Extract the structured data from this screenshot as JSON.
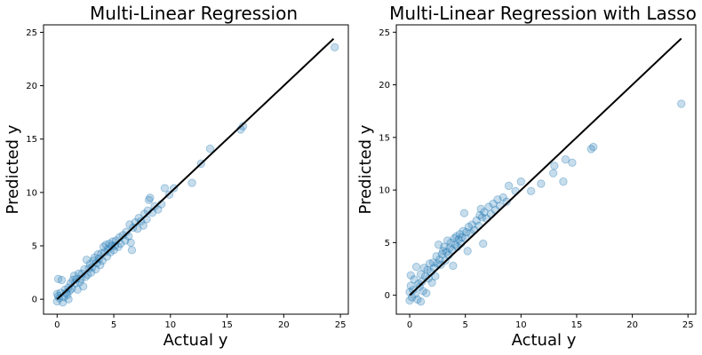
{
  "chart_data": [
    {
      "type": "scatter",
      "title": "Multi-Linear Regression",
      "xlabel": "Actual y",
      "ylabel": "Predicted y",
      "xlim": [
        -1.2,
        25.7
      ],
      "ylim": [
        -1.4,
        25.7
      ],
      "xticks": [
        0,
        5,
        10,
        15,
        20,
        25
      ],
      "yticks": [
        0,
        5,
        10,
        15,
        20,
        25
      ],
      "point_color": "#1f77b4",
      "line_color": "#000000",
      "reference_line": {
        "x": [
          0,
          24.4
        ],
        "y": [
          0,
          24.4
        ]
      },
      "points": [
        [
          0.0,
          -0.2
        ],
        [
          0.0,
          0.5
        ],
        [
          0.1,
          0.3
        ],
        [
          0.1,
          1.9
        ],
        [
          0.2,
          0.1
        ],
        [
          0.3,
          0.6
        ],
        [
          0.4,
          1.8
        ],
        [
          0.5,
          -0.3
        ],
        [
          0.6,
          0.2
        ],
        [
          0.7,
          0.9
        ],
        [
          0.8,
          0.6
        ],
        [
          0.9,
          0.4
        ],
        [
          1.0,
          0.0
        ],
        [
          1.0,
          1.1
        ],
        [
          1.1,
          0.8
        ],
        [
          1.2,
          1.5
        ],
        [
          1.3,
          1.0
        ],
        [
          1.4,
          1.8
        ],
        [
          1.5,
          2.2
        ],
        [
          1.6,
          1.5
        ],
        [
          1.7,
          1.9
        ],
        [
          1.8,
          0.9
        ],
        [
          1.9,
          2.4
        ],
        [
          2.0,
          1.6
        ],
        [
          2.1,
          1.9
        ],
        [
          2.2,
          2.4
        ],
        [
          2.3,
          1.2
        ],
        [
          2.4,
          2.8
        ],
        [
          2.5,
          2.1
        ],
        [
          2.6,
          3.7
        ],
        [
          2.7,
          2.3
        ],
        [
          2.8,
          2.9
        ],
        [
          2.9,
          3.3
        ],
        [
          3.0,
          2.5
        ],
        [
          3.1,
          3.0
        ],
        [
          3.2,
          3.6
        ],
        [
          3.3,
          3.9
        ],
        [
          3.4,
          2.8
        ],
        [
          3.5,
          3.4
        ],
        [
          3.6,
          4.2
        ],
        [
          3.7,
          3.8
        ],
        [
          3.8,
          3.2
        ],
        [
          3.9,
          4.3
        ],
        [
          4.0,
          3.6
        ],
        [
          4.1,
          4.9
        ],
        [
          4.2,
          4.4
        ],
        [
          4.3,
          5.1
        ],
        [
          4.4,
          4.0
        ],
        [
          4.5,
          4.7
        ],
        [
          4.6,
          5.2
        ],
        [
          4.7,
          4.4
        ],
        [
          4.8,
          5.0
        ],
        [
          4.9,
          5.4
        ],
        [
          5.0,
          4.6
        ],
        [
          5.1,
          5.0
        ],
        [
          5.2,
          5.5
        ],
        [
          5.4,
          4.9
        ],
        [
          5.5,
          5.8
        ],
        [
          5.6,
          5.2
        ],
        [
          5.8,
          6.0
        ],
        [
          6.0,
          5.5
        ],
        [
          6.1,
          6.3
        ],
        [
          6.3,
          5.9
        ],
        [
          6.4,
          7.0
        ],
        [
          6.5,
          5.3
        ],
        [
          6.6,
          4.6
        ],
        [
          6.7,
          6.7
        ],
        [
          6.9,
          7.2
        ],
        [
          7.1,
          6.6
        ],
        [
          7.2,
          7.6
        ],
        [
          7.4,
          7.3
        ],
        [
          7.6,
          6.9
        ],
        [
          7.7,
          8.0
        ],
        [
          7.9,
          7.5
        ],
        [
          8.0,
          8.3
        ],
        [
          8.1,
          9.3
        ],
        [
          8.2,
          9.5
        ],
        [
          8.4,
          8.1
        ],
        [
          8.6,
          8.7
        ],
        [
          8.9,
          8.4
        ],
        [
          9.2,
          8.9
        ],
        [
          9.5,
          10.4
        ],
        [
          9.9,
          9.8
        ],
        [
          10.3,
          10.4
        ],
        [
          11.9,
          10.9
        ],
        [
          12.7,
          12.7
        ],
        [
          13.5,
          14.1
        ],
        [
          16.2,
          15.9
        ],
        [
          16.4,
          16.2
        ],
        [
          24.5,
          23.6
        ]
      ]
    },
    {
      "type": "scatter",
      "title": "Multi-Linear Regression with Lasso",
      "xlabel": "Actual y",
      "ylabel": "Predicted y",
      "xlim": [
        -1.2,
        25.7
      ],
      "ylim": [
        -1.8,
        25.7
      ],
      "xticks": [
        0,
        5,
        10,
        15,
        20,
        25
      ],
      "yticks": [
        0,
        5,
        10,
        15,
        20,
        25
      ],
      "point_color": "#1f77b4",
      "line_color": "#000000",
      "reference_line": {
        "x": [
          0,
          24.4
        ],
        "y": [
          0,
          24.4
        ]
      },
      "points": [
        [
          0.0,
          -0.5
        ],
        [
          0.0,
          0.3
        ],
        [
          0.1,
          1.9
        ],
        [
          0.1,
          0.9
        ],
        [
          0.2,
          -0.2
        ],
        [
          0.3,
          0.5
        ],
        [
          0.4,
          1.5
        ],
        [
          0.5,
          0.1
        ],
        [
          0.6,
          2.7
        ],
        [
          0.7,
          -0.4
        ],
        [
          0.8,
          1.1
        ],
        [
          0.9,
          0.8
        ],
        [
          1.0,
          -0.6
        ],
        [
          1.0,
          2.0
        ],
        [
          1.1,
          1.3
        ],
        [
          1.2,
          0.4
        ],
        [
          1.3,
          2.6
        ],
        [
          1.4,
          1.8
        ],
        [
          1.5,
          0.2
        ],
        [
          1.6,
          2.4
        ],
        [
          1.7,
          1.6
        ],
        [
          1.8,
          3.0
        ],
        [
          1.9,
          2.2
        ],
        [
          2.0,
          1.2
        ],
        [
          2.1,
          3.1
        ],
        [
          2.2,
          2.6
        ],
        [
          2.3,
          1.8
        ],
        [
          2.4,
          3.7
        ],
        [
          2.5,
          3.0
        ],
        [
          2.6,
          4.8
        ],
        [
          2.7,
          3.4
        ],
        [
          2.8,
          2.9
        ],
        [
          2.9,
          3.9
        ],
        [
          3.0,
          4.2
        ],
        [
          3.1,
          4.6
        ],
        [
          3.2,
          3.3
        ],
        [
          3.3,
          4.1
        ],
        [
          3.4,
          5.2
        ],
        [
          3.5,
          3.8
        ],
        [
          3.6,
          4.5
        ],
        [
          3.7,
          5.0
        ],
        [
          3.8,
          4.3
        ],
        [
          3.9,
          2.8
        ],
        [
          4.0,
          5.4
        ],
        [
          4.1,
          4.8
        ],
        [
          4.2,
          5.6
        ],
        [
          4.3,
          4.6
        ],
        [
          4.4,
          5.3
        ],
        [
          4.5,
          5.8
        ],
        [
          4.6,
          4.9
        ],
        [
          4.7,
          5.5
        ],
        [
          4.8,
          6.1
        ],
        [
          4.9,
          7.8
        ],
        [
          5.0,
          5.4
        ],
        [
          5.1,
          6.0
        ],
        [
          5.2,
          4.2
        ],
        [
          5.3,
          6.5
        ],
        [
          5.5,
          5.9
        ],
        [
          5.6,
          6.7
        ],
        [
          5.8,
          6.2
        ],
        [
          6.0,
          7.1
        ],
        [
          6.2,
          6.6
        ],
        [
          6.3,
          7.6
        ],
        [
          6.4,
          8.2
        ],
        [
          6.5,
          7.4
        ],
        [
          6.6,
          4.9
        ],
        [
          6.7,
          7.9
        ],
        [
          6.9,
          7.3
        ],
        [
          7.1,
          8.4
        ],
        [
          7.3,
          7.7
        ],
        [
          7.5,
          8.7
        ],
        [
          7.7,
          8.1
        ],
        [
          7.9,
          9.1
        ],
        [
          8.1,
          8.5
        ],
        [
          8.4,
          9.3
        ],
        [
          8.7,
          8.9
        ],
        [
          8.9,
          10.4
        ],
        [
          9.5,
          9.9
        ],
        [
          10.0,
          10.8
        ],
        [
          10.9,
          9.9
        ],
        [
          11.8,
          10.6
        ],
        [
          12.9,
          11.6
        ],
        [
          13.0,
          12.3
        ],
        [
          13.8,
          10.8
        ],
        [
          14.0,
          12.9
        ],
        [
          14.6,
          12.6
        ],
        [
          16.3,
          13.9
        ],
        [
          16.5,
          14.1
        ],
        [
          24.4,
          18.2
        ]
      ]
    }
  ]
}
